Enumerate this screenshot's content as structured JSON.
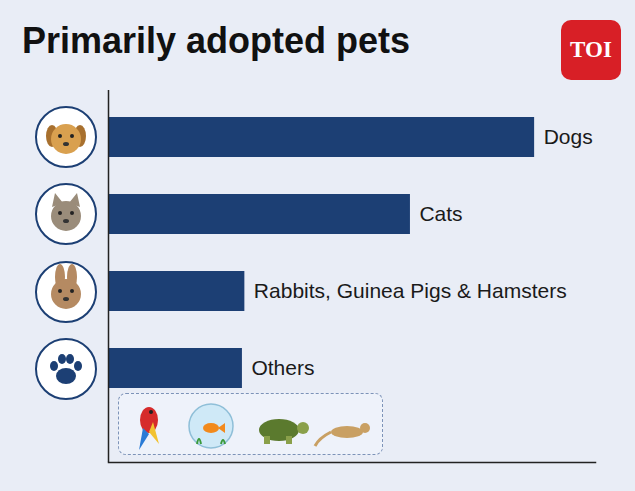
{
  "chart_data": {
    "type": "bar",
    "title": "Primarily adopted pets",
    "logo": "TOI",
    "orientation": "horizontal",
    "categories": [
      "Dogs",
      "Cats",
      "Rabbits, Guinea Pigs & Hamsters",
      "Others"
    ],
    "values": [
      87.5,
      62,
      28,
      27.5
    ],
    "color": "#1c3f74",
    "xlim": [
      0,
      100
    ],
    "xticks": [],
    "tick_labels": false,
    "grid": false
  }
}
